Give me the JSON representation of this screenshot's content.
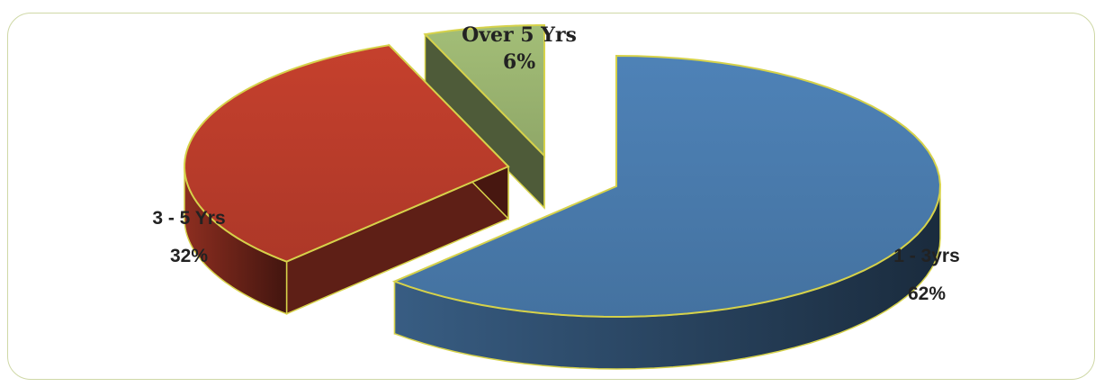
{
  "chart_data": {
    "type": "pie",
    "slices": [
      {
        "label": "1  - 3yrs",
        "value_label": "62%",
        "value": 62,
        "color": "#4a7cae"
      },
      {
        "label": "3  - 5 Yrs",
        "value_label": "32%",
        "value": 32,
        "color": "#bc3d2b"
      },
      {
        "label": "Over 5 Yrs",
        "value_label": "6%",
        "value": 6,
        "color": "#9bb571"
      }
    ],
    "style": "3d-exploded",
    "legend": "none"
  }
}
